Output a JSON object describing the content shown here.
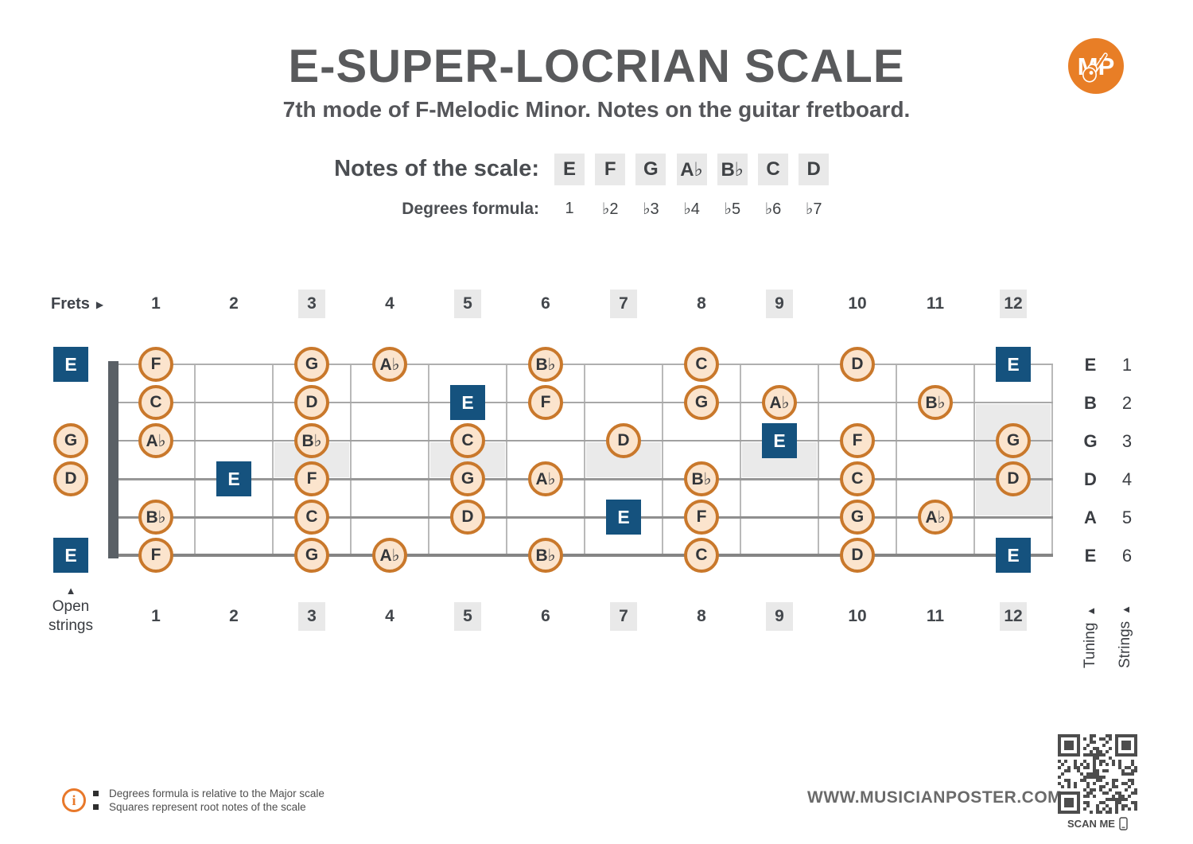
{
  "header": {
    "title": "E-SUPER-LOCRIAN SCALE",
    "subtitle": "7th mode of F-Melodic Minor. Notes on the guitar fretboard.",
    "logo_text": "MP"
  },
  "icons": {
    "up_arrow": "▲",
    "right_arrow": "▶"
  },
  "scale": {
    "notes_label": "Notes of the scale:",
    "notes": [
      "E",
      "F",
      "G",
      "A♭",
      "B♭",
      "C",
      "D"
    ],
    "degrees_label": "Degrees formula:",
    "degrees": [
      "1",
      "♭2",
      "♭3",
      "♭4",
      "♭5",
      "♭6",
      "♭7"
    ]
  },
  "fretboard": {
    "frets_label": "Frets",
    "fret_count": 12,
    "marked_frets": [
      3,
      5,
      7,
      9,
      12
    ],
    "open_strings_label": "Open strings",
    "tuning_label": "Tuning",
    "strings_label": "Strings",
    "strings": [
      {
        "number": 1,
        "tuning": "E",
        "open": {
          "note": "E",
          "root": true
        },
        "notes": [
          {
            "fret": 1,
            "note": "F"
          },
          {
            "fret": 3,
            "note": "G"
          },
          {
            "fret": 4,
            "note": "A♭"
          },
          {
            "fret": 6,
            "note": "B♭"
          },
          {
            "fret": 8,
            "note": "C"
          },
          {
            "fret": 10,
            "note": "D"
          },
          {
            "fret": 12,
            "note": "E",
            "root": true
          }
        ]
      },
      {
        "number": 2,
        "tuning": "B",
        "open": null,
        "notes": [
          {
            "fret": 1,
            "note": "C"
          },
          {
            "fret": 3,
            "note": "D"
          },
          {
            "fret": 5,
            "note": "E",
            "root": true
          },
          {
            "fret": 6,
            "note": "F"
          },
          {
            "fret": 8,
            "note": "G"
          },
          {
            "fret": 9,
            "note": "A♭"
          },
          {
            "fret": 11,
            "note": "B♭"
          }
        ]
      },
      {
        "number": 3,
        "tuning": "G",
        "open": {
          "note": "G",
          "root": false
        },
        "notes": [
          {
            "fret": 1,
            "note": "A♭"
          },
          {
            "fret": 3,
            "note": "B♭"
          },
          {
            "fret": 5,
            "note": "C"
          },
          {
            "fret": 7,
            "note": "D"
          },
          {
            "fret": 9,
            "note": "E",
            "root": true
          },
          {
            "fret": 10,
            "note": "F"
          },
          {
            "fret": 12,
            "note": "G"
          }
        ]
      },
      {
        "number": 4,
        "tuning": "D",
        "open": {
          "note": "D",
          "root": false
        },
        "notes": [
          {
            "fret": 2,
            "note": "E",
            "root": true
          },
          {
            "fret": 3,
            "note": "F"
          },
          {
            "fret": 5,
            "note": "G"
          },
          {
            "fret": 6,
            "note": "A♭"
          },
          {
            "fret": 8,
            "note": "B♭"
          },
          {
            "fret": 10,
            "note": "C"
          },
          {
            "fret": 12,
            "note": "D"
          }
        ]
      },
      {
        "number": 5,
        "tuning": "A",
        "open": null,
        "notes": [
          {
            "fret": 1,
            "note": "B♭"
          },
          {
            "fret": 3,
            "note": "C"
          },
          {
            "fret": 5,
            "note": "D"
          },
          {
            "fret": 7,
            "note": "E",
            "root": true
          },
          {
            "fret": 8,
            "note": "F"
          },
          {
            "fret": 10,
            "note": "G"
          },
          {
            "fret": 11,
            "note": "A♭"
          }
        ]
      },
      {
        "number": 6,
        "tuning": "E",
        "open": {
          "note": "E",
          "root": true
        },
        "notes": [
          {
            "fret": 1,
            "note": "F"
          },
          {
            "fret": 3,
            "note": "G"
          },
          {
            "fret": 4,
            "note": "A♭"
          },
          {
            "fret": 6,
            "note": "B♭"
          },
          {
            "fret": 8,
            "note": "C"
          },
          {
            "fret": 10,
            "note": "D"
          },
          {
            "fret": 12,
            "note": "E",
            "root": true
          }
        ]
      }
    ]
  },
  "legend": {
    "info_icon": "i",
    "bullets": [
      "Degrees formula is relative to the Major scale",
      "Squares represent root notes of the scale"
    ]
  },
  "footer": {
    "website": "WWW.MUSICIANPOSTER.COM",
    "scan_label": "SCAN ME"
  },
  "colors": {
    "accent_orange": "#E87E26",
    "note_border_orange": "#C9782B",
    "note_fill_peach": "#FBE4CD",
    "root_blue": "#15527E",
    "marker_gray": "#E9E9E9",
    "nut_gray": "#5A6066",
    "title_gray": "#595A5C"
  }
}
